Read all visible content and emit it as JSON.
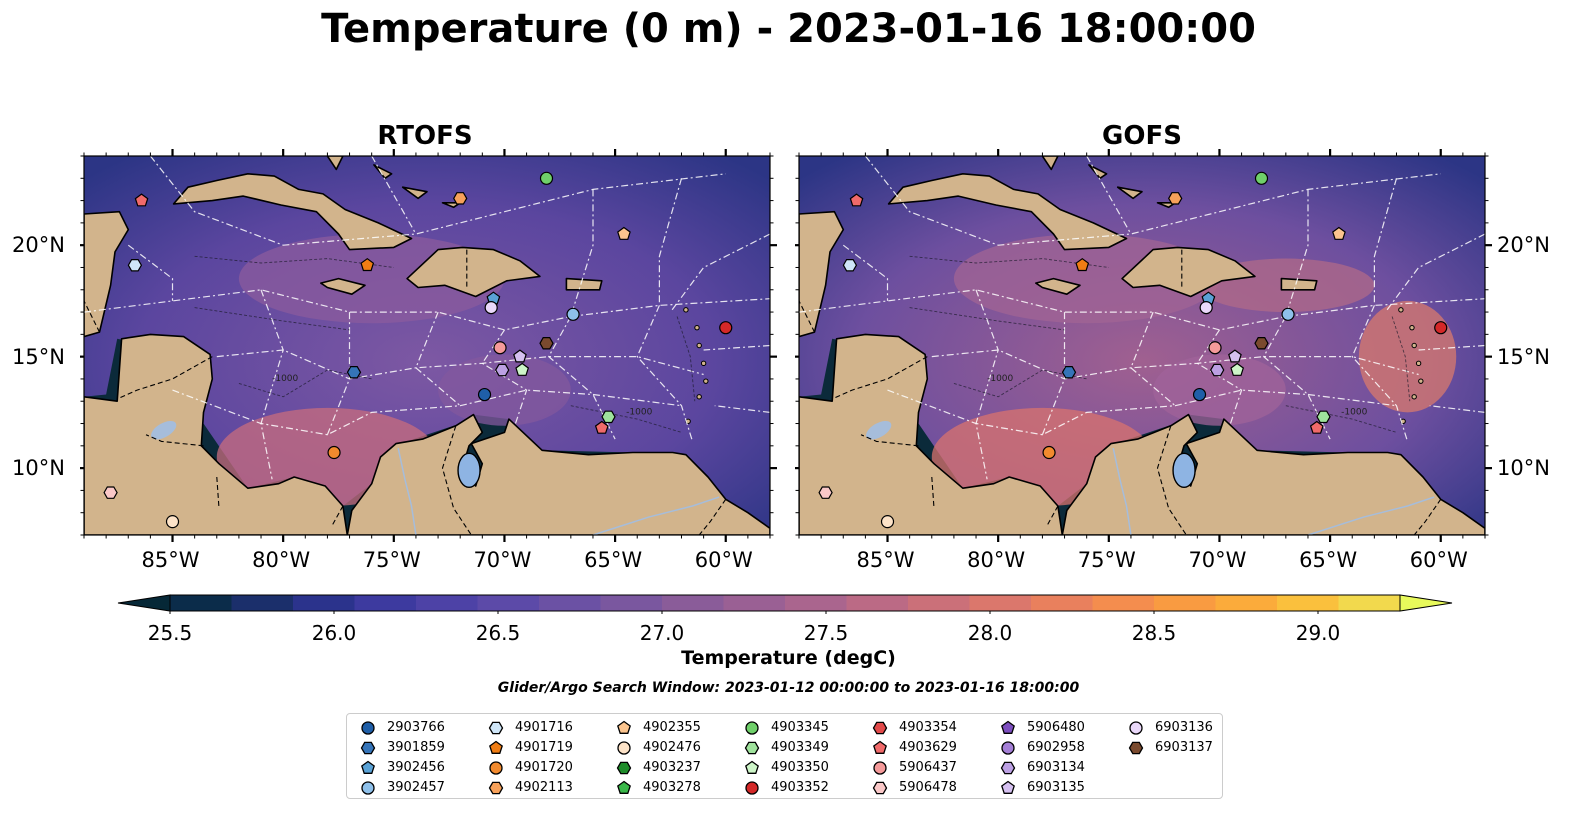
{
  "title": "Temperature (0 m) - 2023-01-16 18:00:00",
  "panels": [
    {
      "title": "RTOFS",
      "variant": "rtofs"
    },
    {
      "title": "GOFS",
      "variant": "gofs"
    }
  ],
  "map": {
    "lon_range": [
      -89,
      -58
    ],
    "lat_range": [
      7,
      24
    ],
    "lon_ticks": [
      {
        "lon": -85,
        "label": "85°W"
      },
      {
        "lon": -80,
        "label": "80°W"
      },
      {
        "lon": -75,
        "label": "75°W"
      },
      {
        "lon": -70,
        "label": "70°W"
      },
      {
        "lon": -65,
        "label": "65°W"
      },
      {
        "lon": -60,
        "label": "60°W"
      }
    ],
    "lat_ticks": [
      {
        "lat": 20,
        "label": "20°N"
      },
      {
        "lat": 15,
        "label": "15°N"
      },
      {
        "lat": 10,
        "label": "10°N"
      }
    ],
    "contour_label": "-1000",
    "colors": {
      "land": "#d2b48c",
      "lake": "#8eb4e3",
      "river": "#a6bddb",
      "ocean_base": "#6a4c9c",
      "deep_water": "#0b2a3a"
    }
  },
  "colorbar": {
    "label": "Temperature (degC)",
    "min": 25.5,
    "max": 29.25,
    "step": 0.25,
    "extend": "both",
    "ticks": [
      "25.5",
      "26.0",
      "26.5",
      "27.0",
      "27.5",
      "28.0",
      "28.5",
      "29.0"
    ],
    "tick_values": [
      25.5,
      26.0,
      26.5,
      27.0,
      27.5,
      28.0,
      28.5,
      29.0
    ],
    "colors": [
      "#062837",
      "#0b2c4a",
      "#1b2f6b",
      "#2b338c",
      "#3d3a9f",
      "#4d42a6",
      "#5c4aa8",
      "#6b51a4",
      "#7a579f",
      "#8a5c99",
      "#9a6094",
      "#aa658e",
      "#bb6a85",
      "#cb7079",
      "#db776c",
      "#e9805d",
      "#f48d4e",
      "#f99b41",
      "#fbab3b",
      "#fac03d",
      "#f2d94d",
      "#e8fa5b"
    ]
  },
  "search_window": "Glider/Argo Search Window: 2023-01-12 00:00:00 to 2023-01-16 18:00:00",
  "floats": [
    {
      "id": "2903766",
      "marker": "circle",
      "color": "#1f5fa8",
      "lon": -70.9,
      "lat": 13.3
    },
    {
      "id": "3901859",
      "marker": "hexagon",
      "color": "#3574b8",
      "lon": -76.8,
      "lat": 14.3
    },
    {
      "id": "3902456",
      "marker": "pentagon",
      "color": "#5aa2d6",
      "lon": -70.5,
      "lat": 17.6
    },
    {
      "id": "3902457",
      "marker": "circle",
      "color": "#8ec0ea",
      "lon": -66.9,
      "lat": 16.9
    },
    {
      "id": "4901716",
      "marker": "hexagon",
      "color": "#cfe6f8",
      "lon": -86.7,
      "lat": 19.1
    },
    {
      "id": "4901719",
      "marker": "pentagon",
      "color": "#f07d14",
      "lon": -76.2,
      "lat": 19.1
    },
    {
      "id": "4901720",
      "marker": "circle",
      "color": "#f28a2e",
      "lon": -77.7,
      "lat": 10.7
    },
    {
      "id": "4902113",
      "marker": "hexagon",
      "color": "#f7a15a",
      "lon": -72.0,
      "lat": 22.1
    },
    {
      "id": "4902355",
      "marker": "pentagon",
      "color": "#fbc48e",
      "lon": -64.6,
      "lat": 20.5
    },
    {
      "id": "4902476",
      "marker": "circle",
      "color": "#fde3c8",
      "lon": -85.0,
      "lat": 7.6
    },
    {
      "id": "4903237",
      "marker": "hexagon",
      "color": "#1e8c2a",
      "lon": -999,
      "lat": -999
    },
    {
      "id": "4903278",
      "marker": "pentagon",
      "color": "#3ab84a",
      "lon": -999,
      "lat": -999
    },
    {
      "id": "4903345",
      "marker": "circle",
      "color": "#6fd06a",
      "lon": -68.1,
      "lat": 23.0
    },
    {
      "id": "4903349",
      "marker": "hexagon",
      "color": "#9fe29c",
      "lon": -65.3,
      "lat": 12.3
    },
    {
      "id": "4903350",
      "marker": "pentagon",
      "color": "#cdf5c8",
      "lon": -69.2,
      "lat": 14.4
    },
    {
      "id": "4903352",
      "marker": "circle",
      "color": "#d42828",
      "lon": -60.0,
      "lat": 16.3
    },
    {
      "id": "4903354",
      "marker": "hexagon",
      "color": "#e24a4a",
      "lon": -999,
      "lat": -999
    },
    {
      "id": "4903629",
      "marker": "pentagon",
      "color": "#f06a6a",
      "lon": -86.4,
      "lat": 22.0
    },
    {
      "id": "5906437",
      "marker": "circle",
      "color": "#f59a9a",
      "lon": -70.2,
      "lat": 15.4
    },
    {
      "id": "5906478",
      "marker": "hexagon",
      "color": "#fac8c8",
      "lon": -87.8,
      "lat": 8.9
    },
    {
      "id": "5906480",
      "marker": "pentagon",
      "color": "#7d4fbf",
      "lon": -999,
      "lat": -999
    },
    {
      "id": "6902958",
      "marker": "circle",
      "color": "#a47fd6",
      "lon": -999,
      "lat": -999
    },
    {
      "id": "6903134",
      "marker": "hexagon",
      "color": "#bca0e3",
      "lon": -70.1,
      "lat": 14.4
    },
    {
      "id": "6903135",
      "marker": "pentagon",
      "color": "#d5c0f0",
      "lon": -69.3,
      "lat": 15.0
    },
    {
      "id": "6903136",
      "marker": "circle",
      "color": "#ead8fa",
      "lon": -70.6,
      "lat": 17.2
    },
    {
      "id": "6903137",
      "marker": "hexagon",
      "color": "#7a4a2e",
      "lon": -68.1,
      "lat": 15.6
    },
    {
      "id": "4903629b",
      "marker": "pentagon",
      "color": "#f06a6a",
      "lon": -65.6,
      "lat": 11.8
    }
  ]
}
